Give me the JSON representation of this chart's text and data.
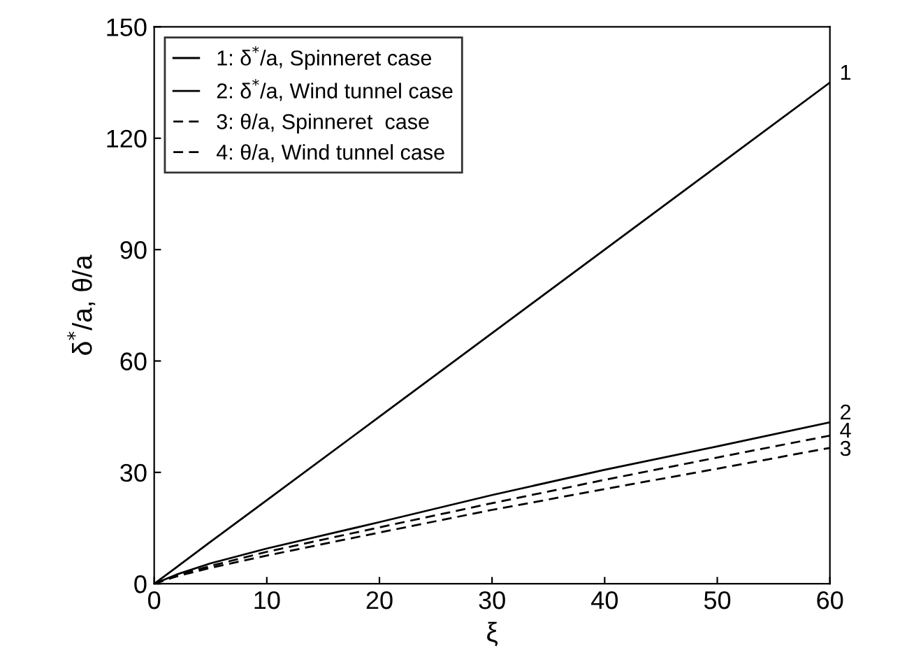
{
  "chart_data": {
    "type": "line",
    "xlabel": "ξ",
    "ylabel": "δ$^{*}$/a, θ/a",
    "x": [
      0,
      2,
      5,
      10,
      20,
      30,
      40,
      50,
      60
    ],
    "series": [
      {
        "name": "1: δ$^{*}$/a, Spinneret case",
        "color": "#000000",
        "line_style": "solid",
        "values": [
          0,
          4.5,
          11.3,
          22.5,
          45,
          67.5,
          90,
          112.5,
          135
        ]
      },
      {
        "name": "2: δ$^{*}$/a, Wind tunnel case",
        "color": "#000000",
        "line_style": "solid",
        "values": [
          0,
          2.5,
          5.5,
          9.5,
          16.6,
          23.9,
          30.7,
          37,
          43.5
        ]
      },
      {
        "name": "3: θ/a, Spinneret  case",
        "color": "#000000",
        "line_style": "dashed",
        "values": [
          0,
          2,
          4.3,
          7.6,
          13.8,
          19.9,
          25.5,
          31,
          36.6
        ]
      },
      {
        "name": "4: θ/a, Wind tunnel case",
        "color": "#000000",
        "line_style": "dashed",
        "values": [
          0,
          2.2,
          4.8,
          8.6,
          15.2,
          21.7,
          28,
          34,
          39.9
        ]
      }
    ],
    "annotations": [
      "1",
      "2",
      "4",
      "3"
    ],
    "xlim": [
      0,
      60
    ],
    "ylim": [
      0,
      150
    ],
    "xticks": [
      0,
      10,
      20,
      30,
      40,
      50,
      60
    ],
    "yticks": [
      0,
      30,
      60,
      90,
      120,
      150
    ],
    "legend": "top left",
    "grid": false,
    "marker": "none"
  }
}
